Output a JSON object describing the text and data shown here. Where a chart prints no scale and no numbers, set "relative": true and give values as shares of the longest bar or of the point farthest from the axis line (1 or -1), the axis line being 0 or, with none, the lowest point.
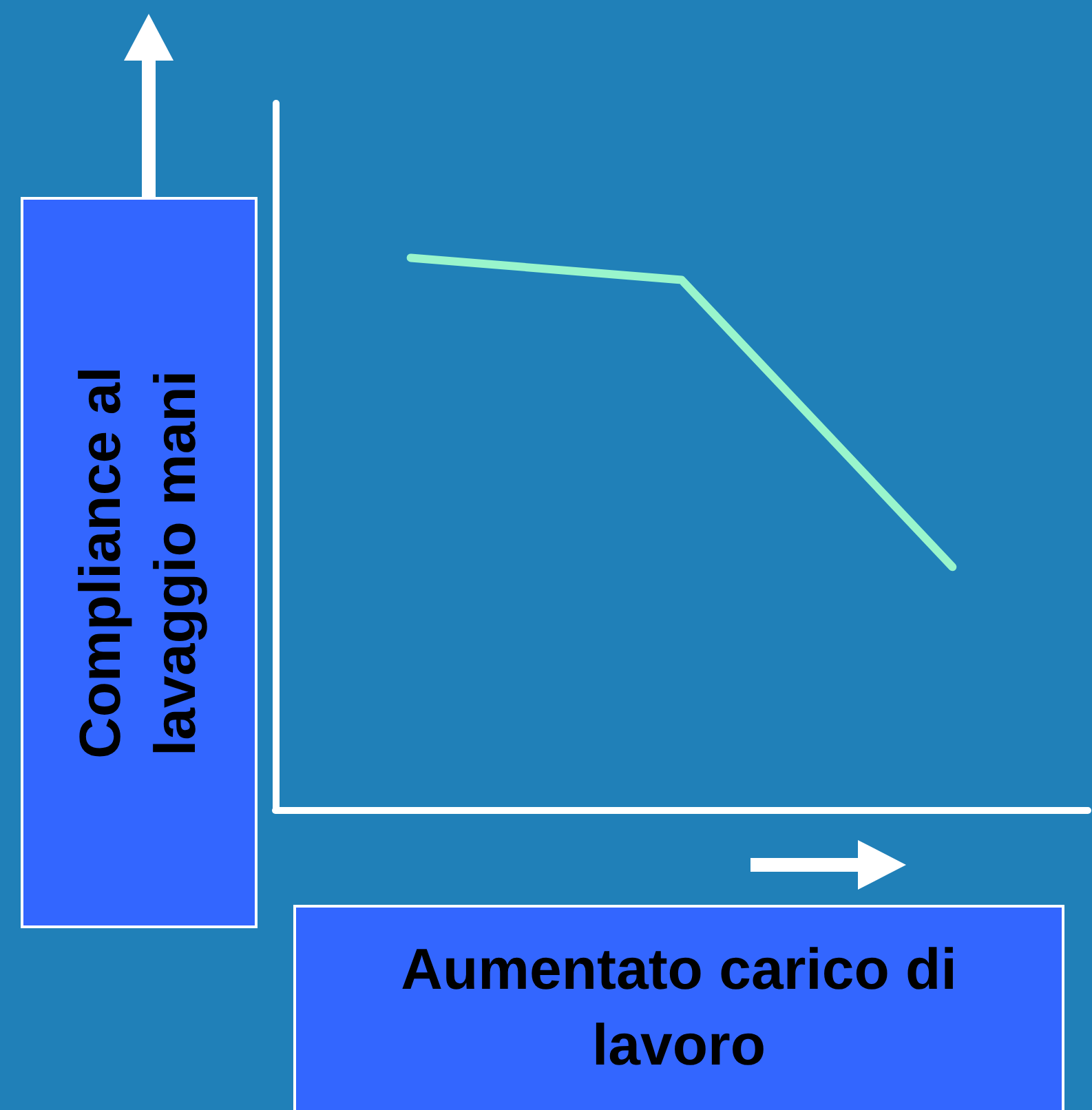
{
  "chart_data": {
    "type": "line",
    "relative": true,
    "xlabel": "Aumentato carico di lavoro",
    "ylabel": "Compliance al lavaggio mani",
    "categories": [
      null,
      null,
      null
    ],
    "series": [
      {
        "color": "#99f5cc",
        "values": [
          1,
          0.96,
          0.44
        ]
      }
    ],
    "marker": "none",
    "line_style": "solid"
  }
}
